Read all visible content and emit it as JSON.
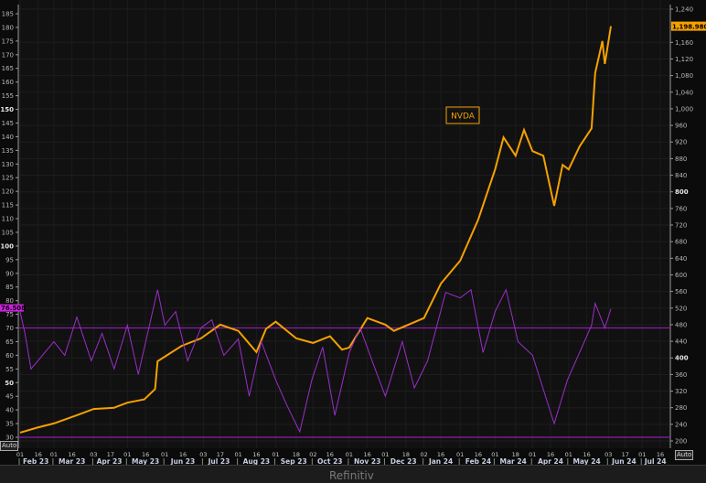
{
  "chart_data": {
    "type": "line",
    "title": "",
    "legend_label": "NVDA",
    "last_price_tag": "1,198.980",
    "last_rsi_tag": "76.508",
    "colors": {
      "price": "#f5a100",
      "rsi": "#9b2fc9",
      "tag_price": "#f5a100",
      "tag_rsi": "#d020e0",
      "ref_line": "#8a1fa8"
    },
    "right_axis": {
      "range": [
        200,
        1240
      ],
      "ticks": [
        "1,240",
        "1,160",
        "1,120",
        "1,080",
        "1,040",
        "1,000",
        "960",
        "920",
        "880",
        "840",
        "800",
        "760",
        "720",
        "680",
        "640",
        "600",
        "560",
        "520",
        "480",
        "440",
        "400",
        "360",
        "320",
        "280",
        "240",
        "200"
      ],
      "values": [
        1240,
        1160,
        1120,
        1080,
        1040,
        1000,
        960,
        920,
        880,
        840,
        800,
        760,
        720,
        680,
        640,
        600,
        560,
        520,
        480,
        440,
        400,
        360,
        320,
        280,
        240,
        200
      ]
    },
    "left_axis": {
      "range": [
        30,
        185
      ],
      "values": [
        185,
        180,
        175,
        170,
        165,
        160,
        155,
        150,
        145,
        140,
        135,
        130,
        125,
        120,
        115,
        110,
        105,
        100,
        95,
        90,
        85,
        80,
        75,
        70,
        65,
        60,
        55,
        50,
        45,
        40,
        35,
        30
      ]
    },
    "rsi_reference_lines": [
      70,
      30
    ],
    "x_range": [
      "2023-02-01",
      "2024-07-16"
    ],
    "x_day_ticks": [
      {
        "d": "2023-02-01",
        "l": "01"
      },
      {
        "d": "2023-02-16",
        "l": "16"
      },
      {
        "d": "2023-03-01",
        "l": "01"
      },
      {
        "d": "2023-03-16",
        "l": "16"
      },
      {
        "d": "2023-04-03",
        "l": "03"
      },
      {
        "d": "2023-04-17",
        "l": "17"
      },
      {
        "d": "2023-05-01",
        "l": "01"
      },
      {
        "d": "2023-05-16",
        "l": "16"
      },
      {
        "d": "2023-06-01",
        "l": "01"
      },
      {
        "d": "2023-06-16",
        "l": "16"
      },
      {
        "d": "2023-07-03",
        "l": "03"
      },
      {
        "d": "2023-07-17",
        "l": "17"
      },
      {
        "d": "2023-08-01",
        "l": "01"
      },
      {
        "d": "2023-08-16",
        "l": "16"
      },
      {
        "d": "2023-09-01",
        "l": "01"
      },
      {
        "d": "2023-09-18",
        "l": "18"
      },
      {
        "d": "2023-10-02",
        "l": "02"
      },
      {
        "d": "2023-10-16",
        "l": "16"
      },
      {
        "d": "2023-11-01",
        "l": "01"
      },
      {
        "d": "2023-11-16",
        "l": "16"
      },
      {
        "d": "2023-12-01",
        "l": "01"
      },
      {
        "d": "2023-12-18",
        "l": "18"
      },
      {
        "d": "2024-01-02",
        "l": "02"
      },
      {
        "d": "2024-01-16",
        "l": "16"
      },
      {
        "d": "2024-02-01",
        "l": "01"
      },
      {
        "d": "2024-02-16",
        "l": "16"
      },
      {
        "d": "2024-03-01",
        "l": "01"
      },
      {
        "d": "2024-03-18",
        "l": "18"
      },
      {
        "d": "2024-04-01",
        "l": "01"
      },
      {
        "d": "2024-04-16",
        "l": "16"
      },
      {
        "d": "2024-05-01",
        "l": "01"
      },
      {
        "d": "2024-05-16",
        "l": "16"
      },
      {
        "d": "2024-06-03",
        "l": "03"
      },
      {
        "d": "2024-06-17",
        "l": "17"
      },
      {
        "d": "2024-07-01",
        "l": "01"
      },
      {
        "d": "2024-07-16",
        "l": "16"
      }
    ],
    "x_month_labels": [
      {
        "d": "2023-02-14",
        "l": "Feb 23"
      },
      {
        "d": "2023-03-16",
        "l": "Mar 23"
      },
      {
        "d": "2023-04-16",
        "l": "Apr 23"
      },
      {
        "d": "2023-05-16",
        "l": "May 23"
      },
      {
        "d": "2023-06-16",
        "l": "Jun 23"
      },
      {
        "d": "2023-07-16",
        "l": "Jul 23"
      },
      {
        "d": "2023-08-16",
        "l": "Aug 23"
      },
      {
        "d": "2023-09-16",
        "l": "Sep 23"
      },
      {
        "d": "2023-10-16",
        "l": "Oct 23"
      },
      {
        "d": "2023-11-16",
        "l": "Nov 23"
      },
      {
        "d": "2023-12-16",
        "l": "Dec 23"
      },
      {
        "d": "2024-01-16",
        "l": "Jan 24"
      },
      {
        "d": "2024-02-16",
        "l": "Feb 24"
      },
      {
        "d": "2024-03-16",
        "l": "Mar 24"
      },
      {
        "d": "2024-04-16",
        "l": "Apr 24"
      },
      {
        "d": "2024-05-16",
        "l": "May 24"
      },
      {
        "d": "2024-06-16",
        "l": "Jun 24"
      },
      {
        "d": "2024-07-12",
        "l": "Jul 24"
      }
    ],
    "series": [
      {
        "name": "NVDA",
        "axis": "right",
        "points": [
          [
            "2023-02-01",
            220
          ],
          [
            "2023-02-15",
            232
          ],
          [
            "2023-03-01",
            242
          ],
          [
            "2023-03-20",
            262
          ],
          [
            "2023-04-03",
            277
          ],
          [
            "2023-04-20",
            280
          ],
          [
            "2023-05-01",
            292
          ],
          [
            "2023-05-15",
            300
          ],
          [
            "2023-05-24",
            325
          ],
          [
            "2023-05-26",
            392
          ],
          [
            "2023-06-01",
            403
          ],
          [
            "2023-06-15",
            429
          ],
          [
            "2023-07-01",
            447
          ],
          [
            "2023-07-17",
            480
          ],
          [
            "2023-08-01",
            465
          ],
          [
            "2023-08-16",
            414
          ],
          [
            "2023-08-24",
            470
          ],
          [
            "2023-09-01",
            487
          ],
          [
            "2023-09-18",
            447
          ],
          [
            "2023-10-02",
            436
          ],
          [
            "2023-10-16",
            452
          ],
          [
            "2023-10-26",
            420
          ],
          [
            "2023-11-01",
            425
          ],
          [
            "2023-11-16",
            496
          ],
          [
            "2023-12-01",
            480
          ],
          [
            "2023-12-08",
            465
          ],
          [
            "2024-01-02",
            496
          ],
          [
            "2024-01-16",
            579
          ],
          [
            "2024-02-01",
            634
          ],
          [
            "2024-02-16",
            733
          ],
          [
            "2024-03-01",
            854
          ],
          [
            "2024-03-08",
            931
          ],
          [
            "2024-03-18",
            887
          ],
          [
            "2024-03-25",
            949
          ],
          [
            "2024-04-01",
            898
          ],
          [
            "2024-04-10",
            887
          ],
          [
            "2024-04-19",
            766
          ],
          [
            "2024-04-26",
            865
          ],
          [
            "2024-05-01",
            854
          ],
          [
            "2024-05-10",
            909
          ],
          [
            "2024-05-20",
            953
          ],
          [
            "2024-05-23",
            1086
          ],
          [
            "2024-05-29",
            1163
          ],
          [
            "2024-05-31",
            1108
          ],
          [
            "2024-06-05",
            1198.98
          ]
        ]
      },
      {
        "name": "RSI",
        "axis": "left",
        "points": [
          [
            "2023-02-01",
            76
          ],
          [
            "2023-02-05",
            68
          ],
          [
            "2023-02-10",
            55
          ],
          [
            "2023-03-01",
            65
          ],
          [
            "2023-03-10",
            60
          ],
          [
            "2023-03-20",
            74
          ],
          [
            "2023-04-01",
            58
          ],
          [
            "2023-04-10",
            68
          ],
          [
            "2023-04-20",
            55
          ],
          [
            "2023-05-01",
            71
          ],
          [
            "2023-05-10",
            53
          ],
          [
            "2023-05-26",
            84
          ],
          [
            "2023-06-01",
            71
          ],
          [
            "2023-06-10",
            76
          ],
          [
            "2023-06-20",
            58
          ],
          [
            "2023-07-01",
            70
          ],
          [
            "2023-07-10",
            73
          ],
          [
            "2023-07-20",
            60
          ],
          [
            "2023-08-01",
            66
          ],
          [
            "2023-08-10",
            45
          ],
          [
            "2023-08-20",
            65
          ],
          [
            "2023-09-01",
            51
          ],
          [
            "2023-09-10",
            42
          ],
          [
            "2023-09-21",
            32
          ],
          [
            "2023-10-01",
            51
          ],
          [
            "2023-10-10",
            63
          ],
          [
            "2023-10-20",
            38
          ],
          [
            "2023-11-01",
            61
          ],
          [
            "2023-11-10",
            70
          ],
          [
            "2023-11-20",
            58
          ],
          [
            "2023-12-01",
            45
          ],
          [
            "2023-12-15",
            65
          ],
          [
            "2023-12-25",
            48
          ],
          [
            "2024-01-05",
            58
          ],
          [
            "2024-01-20",
            83
          ],
          [
            "2024-02-01",
            81
          ],
          [
            "2024-02-10",
            84
          ],
          [
            "2024-02-20",
            61
          ],
          [
            "2024-03-01",
            76
          ],
          [
            "2024-03-10",
            84
          ],
          [
            "2024-03-20",
            65
          ],
          [
            "2024-04-01",
            60
          ],
          [
            "2024-04-19",
            35
          ],
          [
            "2024-04-30",
            51
          ],
          [
            "2024-05-10",
            61
          ],
          [
            "2024-05-20",
            71
          ],
          [
            "2024-05-23",
            79
          ],
          [
            "2024-05-31",
            70
          ],
          [
            "2024-06-05",
            77
          ]
        ]
      }
    ]
  },
  "ui": {
    "auto_left": "Auto",
    "auto_right": "Auto",
    "brand": "Refinitiv"
  }
}
